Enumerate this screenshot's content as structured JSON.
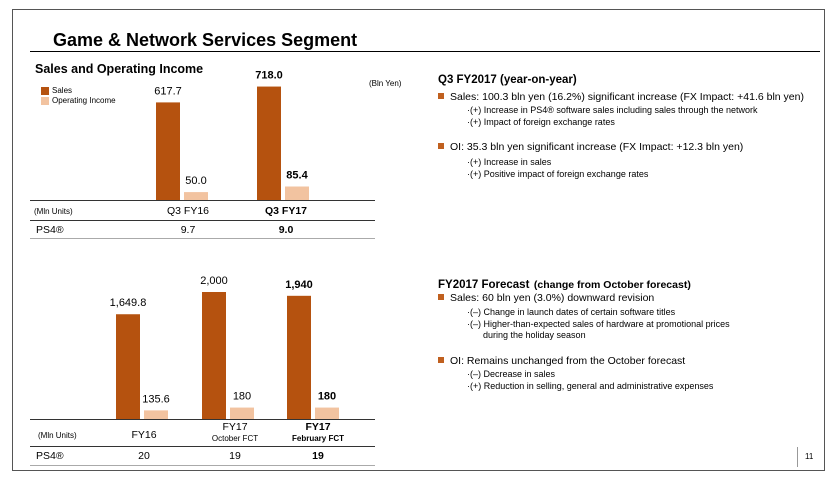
{
  "title": "Game & Network Services Segment",
  "left_top": {
    "heading": "Sales and Operating Income",
    "unit": "(Bln Yen)",
    "legend": [
      {
        "label": "Sales",
        "color": "#b5520f"
      },
      {
        "label": "Operating Income",
        "color": "#f2c3a0"
      }
    ],
    "units_label": "(Mln Units)",
    "row_label": "PS4®",
    "periods": [
      "Q3 FY16",
      "Q3 FY17"
    ],
    "ps4": [
      "9.7",
      "9.0"
    ]
  },
  "left_bottom": {
    "units_label": "(Mln Units)",
    "row_label": "PS4®",
    "periods": [
      {
        "line1": "FY16",
        "line2": ""
      },
      {
        "line1": "FY17",
        "line2": "October FCT"
      },
      {
        "line1": "FY17",
        "line2": "February FCT"
      }
    ],
    "ps4": [
      "20",
      "19",
      "19"
    ]
  },
  "chart_data": [
    {
      "type": "bar",
      "categories": [
        "Q3 FY16",
        "Q3 FY17"
      ],
      "series": [
        {
          "name": "Sales",
          "values": [
            617.7,
            718.0
          ],
          "labels": [
            "617.7",
            "718.0"
          ]
        },
        {
          "name": "Operating Income",
          "values": [
            50.0,
            85.4
          ],
          "labels": [
            "50.0",
            "85.4"
          ]
        }
      ],
      "ylabel": "(Bln Yen)",
      "legend": "top-left",
      "grid": false
    },
    {
      "type": "bar",
      "categories": [
        "FY16",
        "FY17 October FCT",
        "FY17 February FCT"
      ],
      "series": [
        {
          "name": "Sales",
          "values": [
            1649.8,
            2000,
            1940
          ],
          "labels": [
            "1,649.8",
            "2,000",
            "1,940"
          ]
        },
        {
          "name": "Operating Income",
          "values": [
            135.6,
            180,
            180
          ],
          "labels": [
            "135.6",
            "180",
            "180"
          ]
        }
      ],
      "grid": false
    }
  ],
  "right_top": {
    "heading": "Q3 FY2017 (year-on-year)",
    "bullets": [
      {
        "text": "Sales: 100.3 bln yen (16.2%) significant increase (FX Impact: +41.6 bln yen)",
        "subs": [
          "·(+) Increase in PS4® software sales including sales through the network",
          "·(+) Impact of foreign exchange rates"
        ]
      },
      {
        "text": "OI: 35.3 bln yen significant increase (FX Impact: +12.3 bln yen)",
        "subs": [
          "·(+) Increase in sales",
          "·(+) Positive impact of foreign exchange rates"
        ]
      }
    ]
  },
  "right_bottom": {
    "heading": "FY2017 Forecast",
    "heading_suffix": "(change from October forecast)",
    "bullets": [
      {
        "text": "Sales: 60 bln yen (3.0%) downward revision",
        "subs": [
          "·(–) Change in launch dates of certain software titles",
          "·(–) Higher-than-expected sales of hardware at promotional prices",
          "during the holiday season"
        ]
      },
      {
        "text": "OI: Remains unchanged from the October forecast",
        "subs": [
          "·(–) Decrease in sales",
          "·(+) Reduction in selling, general and administrative expenses"
        ]
      }
    ]
  },
  "page_number": "11"
}
